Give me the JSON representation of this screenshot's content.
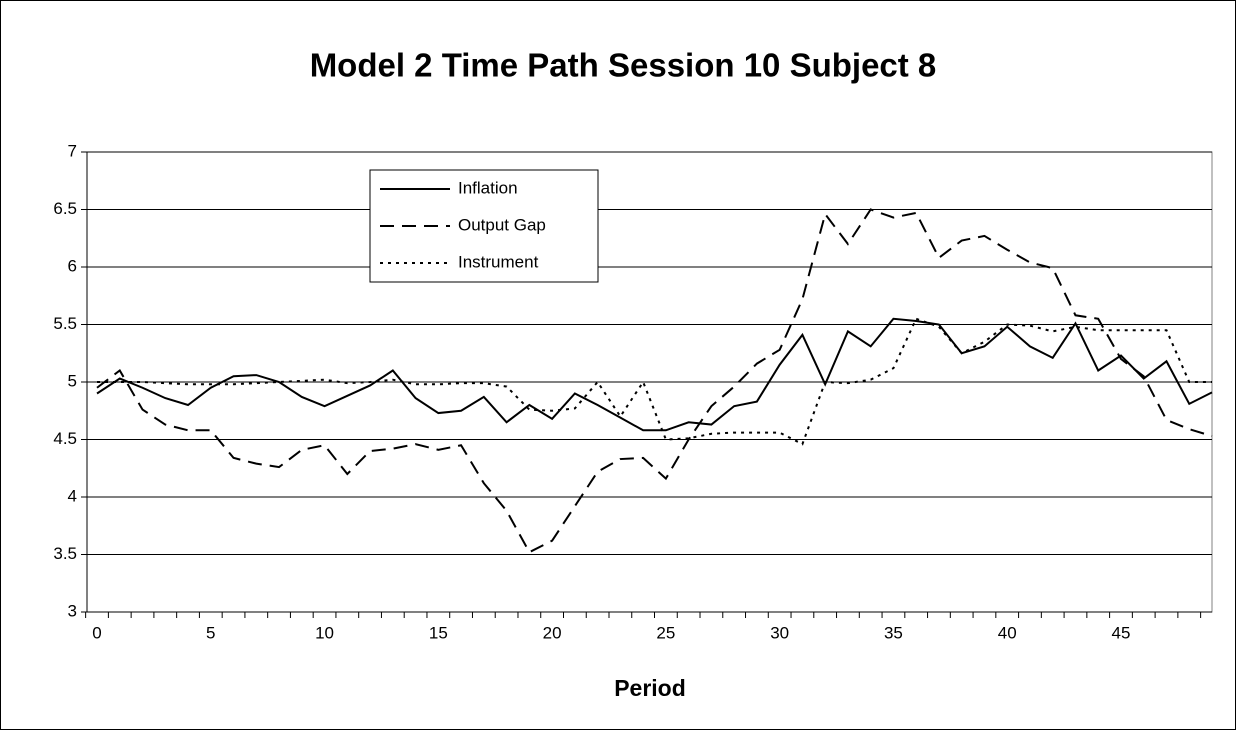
{
  "chart_data": {
    "type": "line",
    "title": "Model 2 Time Path Session 10 Subject 8",
    "x_label": "Period",
    "x": [
      0,
      1,
      2,
      3,
      4,
      5,
      6,
      7,
      8,
      9,
      10,
      11,
      12,
      13,
      14,
      15,
      16,
      17,
      18,
      19,
      20,
      21,
      22,
      23,
      24,
      25,
      26,
      27,
      28,
      29,
      30,
      31,
      32,
      33,
      34,
      35,
      36,
      37,
      38,
      39,
      40,
      41,
      42,
      43,
      44,
      45,
      46,
      47,
      48,
      49
    ],
    "series": [
      {
        "name": "Inflation",
        "color": "#000000",
        "style": "solid",
        "values": [
          4.9,
          5.03,
          4.95,
          4.86,
          4.8,
          4.95,
          5.05,
          5.06,
          5.0,
          4.87,
          4.79,
          4.88,
          4.97,
          5.1,
          4.86,
          4.73,
          4.75,
          4.87,
          4.65,
          4.8,
          4.68,
          4.9,
          4.8,
          4.69,
          4.58,
          4.58,
          4.65,
          4.63,
          4.79,
          4.83,
          5.15,
          5.41,
          4.98,
          5.44,
          5.31,
          5.55,
          5.53,
          5.5,
          5.25,
          5.31,
          5.48,
          5.31,
          5.21,
          5.51,
          5.1,
          5.23,
          5.03,
          5.18,
          4.81,
          4.91
        ]
      },
      {
        "name": "Output Gap",
        "color": "#000000",
        "style": "dashed",
        "values": [
          4.95,
          5.1,
          4.76,
          4.63,
          4.58,
          4.58,
          4.34,
          4.29,
          4.26,
          4.41,
          4.45,
          4.2,
          4.4,
          4.42,
          4.46,
          4.41,
          4.45,
          4.12,
          3.88,
          3.52,
          3.62,
          3.92,
          4.22,
          4.33,
          4.34,
          4.16,
          4.5,
          4.79,
          4.96,
          5.16,
          5.28,
          5.72,
          6.46,
          6.2,
          6.5,
          6.43,
          6.47,
          6.08,
          6.23,
          6.27,
          6.15,
          6.04,
          5.99,
          5.58,
          5.55,
          5.2,
          5.05,
          4.67,
          4.59,
          4.53
        ]
      },
      {
        "name": "Instrument",
        "color": "#000000",
        "style": "dotted",
        "values": [
          5.0,
          5.0,
          5.0,
          4.99,
          4.98,
          4.98,
          4.98,
          4.99,
          5.0,
          5.01,
          5.02,
          4.99,
          5.0,
          5.02,
          4.98,
          4.98,
          4.99,
          4.99,
          4.96,
          4.76,
          4.75,
          4.77,
          5.0,
          4.7,
          5.0,
          4.5,
          4.51,
          4.55,
          4.56,
          4.56,
          4.56,
          4.46,
          5.0,
          4.99,
          5.02,
          5.12,
          5.55,
          5.48,
          5.25,
          5.35,
          5.5,
          5.49,
          5.44,
          5.48,
          5.45,
          5.45,
          5.45,
          5.45,
          5.0,
          5.0
        ]
      }
    ],
    "xlim": [
      -0.44,
      49
    ],
    "xticks": [
      0,
      5,
      10,
      15,
      20,
      25,
      30,
      35,
      40,
      45
    ],
    "ylim": [
      3,
      7
    ],
    "yticks": [
      3,
      3.5,
      4,
      4.5,
      5,
      5.5,
      6,
      6.5,
      7
    ],
    "grid": true,
    "legend": "top-left"
  }
}
